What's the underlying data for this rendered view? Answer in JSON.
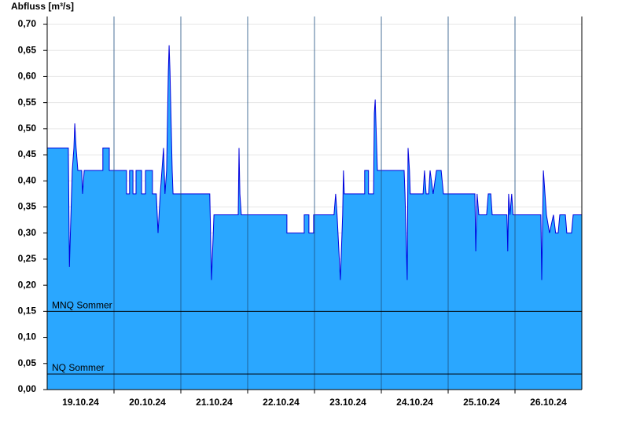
{
  "chart_data": {
    "type": "area",
    "ylabel": "Abfluss [m³/s]",
    "x": [
      0,
      7.6,
      8.0,
      8.6,
      9.0,
      9.6,
      9.9,
      10.4,
      11.0,
      12.4,
      12.7,
      13.3,
      20.0,
      20.0,
      22.3,
      22.3,
      28.5,
      28.5,
      29.6,
      29.6,
      30.8,
      30.8,
      31.9,
      31.9,
      33.9,
      33.9,
      35.3,
      35.3,
      37.8,
      37.8,
      39.2,
      39.8,
      40.6,
      41.8,
      42.3,
      42.9,
      43.5,
      43.8,
      44.1,
      44.9,
      45.2,
      58.4,
      59.0,
      59.9,
      68.6,
      68.9,
      69.2,
      69.7,
      86.1,
      86.1,
      92.3,
      92.3,
      94.0,
      94.0,
      95.7,
      95.7,
      103.0,
      103.6,
      104.1,
      105.3,
      106.1,
      106.4,
      106.7,
      114.0,
      114.0,
      115.4,
      115.4,
      117.2,
      117.5,
      117.8,
      118.6,
      128.2,
      128.5,
      129.3,
      129.6,
      130.1,
      130.4,
      135.0,
      135.5,
      136.1,
      137.0,
      137.5,
      138.6,
      139.8,
      141.5,
      142.3,
      153.6,
      153.9,
      154.4,
      155.0,
      157.8,
      158.4,
      159.3,
      159.8,
      165.1,
      165.4,
      165.7,
      166.2,
      166.8,
      167.3,
      177.3,
      177.6,
      178.2,
      179.3,
      180.4,
      181.8,
      182.6,
      183.5,
      184.1,
      186.1,
      186.6,
      188.3,
      188.9,
      192
    ],
    "series": [
      {
        "color": "#0000dd",
        "fill": "#2aa7ff",
        "values": [
          0.463,
          0.463,
          0.235,
          0.35,
          0.42,
          0.463,
          0.51,
          0.463,
          0.42,
          0.42,
          0.375,
          0.42,
          0.42,
          0.463,
          0.463,
          0.42,
          0.42,
          0.375,
          0.375,
          0.42,
          0.42,
          0.375,
          0.375,
          0.42,
          0.42,
          0.375,
          0.375,
          0.42,
          0.42,
          0.375,
          0.375,
          0.3,
          0.375,
          0.463,
          0.375,
          0.42,
          0.61,
          0.66,
          0.61,
          0.42,
          0.375,
          0.375,
          0.21,
          0.335,
          0.335,
          0.463,
          0.375,
          0.335,
          0.335,
          0.3,
          0.3,
          0.335,
          0.335,
          0.3,
          0.3,
          0.335,
          0.335,
          0.375,
          0.335,
          0.21,
          0.335,
          0.42,
          0.375,
          0.375,
          0.42,
          0.42,
          0.375,
          0.375,
          0.53,
          0.556,
          0.42,
          0.42,
          0.375,
          0.21,
          0.463,
          0.42,
          0.375,
          0.375,
          0.42,
          0.375,
          0.375,
          0.42,
          0.375,
          0.42,
          0.42,
          0.375,
          0.375,
          0.265,
          0.375,
          0.335,
          0.335,
          0.375,
          0.375,
          0.335,
          0.335,
          0.265,
          0.375,
          0.335,
          0.375,
          0.335,
          0.335,
          0.21,
          0.42,
          0.335,
          0.3,
          0.335,
          0.3,
          0.3,
          0.335,
          0.335,
          0.3,
          0.3,
          0.335,
          0.335
        ]
      }
    ],
    "xlim": [
      0,
      192
    ],
    "xticks": [
      {
        "value": 12,
        "label": "19.10.24"
      },
      {
        "value": 36,
        "label": "20.10.24"
      },
      {
        "value": 60,
        "label": "21.10.24"
      },
      {
        "value": 84,
        "label": "22.10.24"
      },
      {
        "value": 108,
        "label": "23.10.24"
      },
      {
        "value": 132,
        "label": "24.10.24"
      },
      {
        "value": 156,
        "label": "25.10.24"
      },
      {
        "value": 180,
        "label": "26.10.24"
      }
    ],
    "xgrid": [
      24,
      48,
      72,
      96,
      120,
      144,
      168
    ],
    "ylim": [
      0,
      0.7
    ],
    "yticks": [
      {
        "value": 0,
        "label": "0,00"
      },
      {
        "value": 0.05,
        "label": "0,05"
      },
      {
        "value": 0.1,
        "label": "0,10"
      },
      {
        "value": 0.15,
        "label": "0,15"
      },
      {
        "value": 0.2,
        "label": "0,20"
      },
      {
        "value": 0.25,
        "label": "0,25"
      },
      {
        "value": 0.3,
        "label": "0,30"
      },
      {
        "value": 0.35,
        "label": "0,35"
      },
      {
        "value": 0.4,
        "label": "0,40"
      },
      {
        "value": 0.45,
        "label": "0,45"
      },
      {
        "value": 0.5,
        "label": "0,50"
      },
      {
        "value": 0.55,
        "label": "0,55"
      },
      {
        "value": 0.6,
        "label": "0,60"
      },
      {
        "value": 0.65,
        "label": "0,65"
      },
      {
        "value": 0.7,
        "label": "0,70"
      }
    ],
    "grid": true,
    "reference_lines": [
      {
        "label": "MNQ Sommer",
        "value": 0.15
      },
      {
        "label": "NQ Sommer",
        "value": 0.03
      }
    ]
  }
}
